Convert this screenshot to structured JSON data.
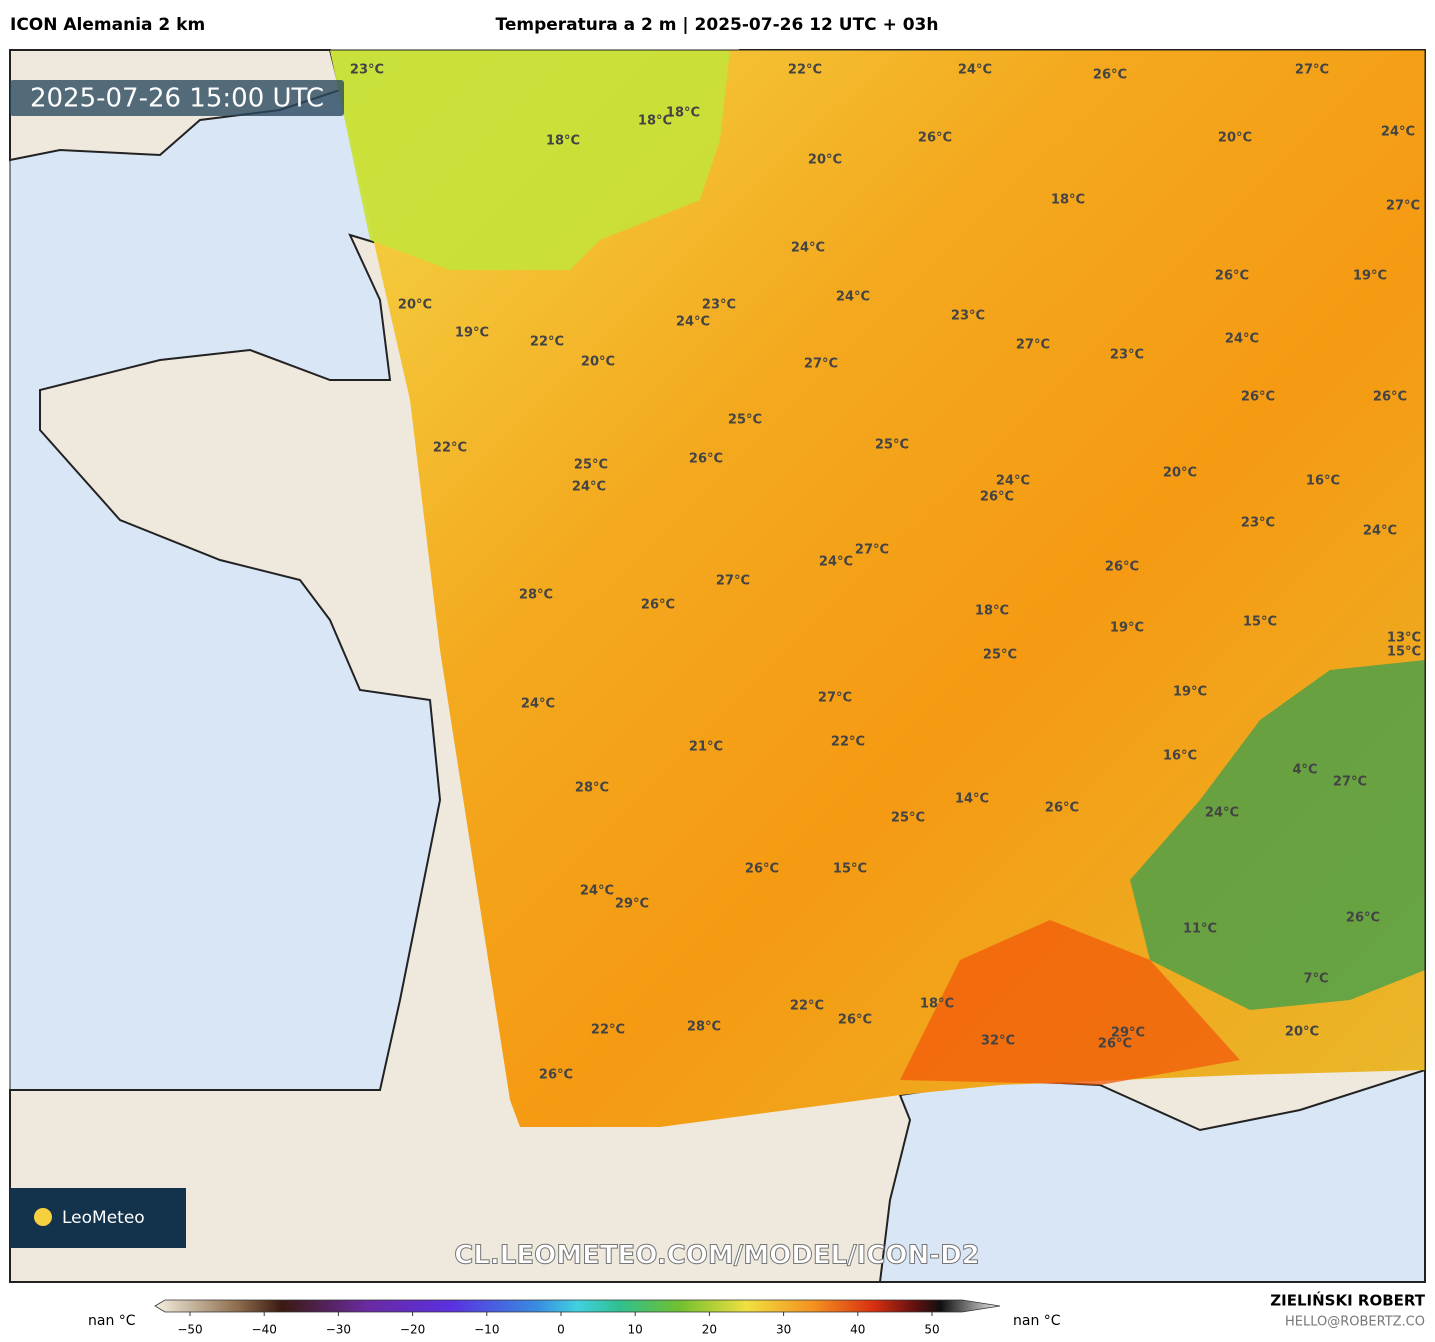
{
  "header": {
    "model": "ICON Alemania 2 km",
    "title": "Temperatura a 2 m | 2025-07-26 12 UTC + 03h"
  },
  "timestamp": "2025-07-26 15:00 UTC",
  "watermark": "CL.LEOMETEO.COM/MODEL/ICON-D2",
  "logo": "LeoMeteo",
  "map_labels": [
    "23°C",
    "22°C",
    "24°C",
    "26°C",
    "27°C",
    "24°C",
    "18°C",
    "18°C",
    "18°C",
    "26°C",
    "20°C",
    "20°C",
    "18°C",
    "27°C",
    "24°C",
    "26°C",
    "19°C",
    "20°C",
    "23°C",
    "24°C",
    "19°C",
    "24°C",
    "23°C",
    "22°C",
    "20°C",
    "27°C",
    "23°C",
    "24°C",
    "27°C",
    "26°C",
    "26°C",
    "25°C",
    "25°C",
    "22°C",
    "26°C",
    "25°C",
    "24°C",
    "20°C",
    "24°C",
    "26°C",
    "16°C",
    "23°C",
    "24°C",
    "27°C",
    "24°C",
    "26°C",
    "27°C",
    "28°C",
    "26°C",
    "18°C",
    "19°C",
    "15°C",
    "13°C",
    "15°C",
    "25°C",
    "19°C",
    "27°C",
    "24°C",
    "22°C",
    "21°C",
    "16°C",
    "4°C",
    "27°C",
    "28°C",
    "14°C",
    "26°C",
    "24°C",
    "25°C",
    "26°C",
    "15°C",
    "24°C",
    "29°C",
    "26°C",
    "11°C",
    "7°C",
    "22°C",
    "18°C",
    "26°C",
    "22°C",
    "28°C",
    "29°C",
    "20°C",
    "32°C",
    "26°C",
    "26°C"
  ],
  "colorbar": {
    "left": "nan °C",
    "right": "nan °C",
    "ticks": [
      {
        "value": -50,
        "label": "−50"
      },
      {
        "value": -40,
        "label": "−40"
      },
      {
        "value": -30,
        "label": "−30"
      },
      {
        "value": -20,
        "label": "−20"
      },
      {
        "value": -10,
        "label": "−10"
      },
      0,
      10,
      20,
      30,
      40,
      50
    ]
  },
  "credits": {
    "name": "ZIELIŃSKI ROBERT",
    "email": "HELLO@ROBERTZ.CO"
  }
}
